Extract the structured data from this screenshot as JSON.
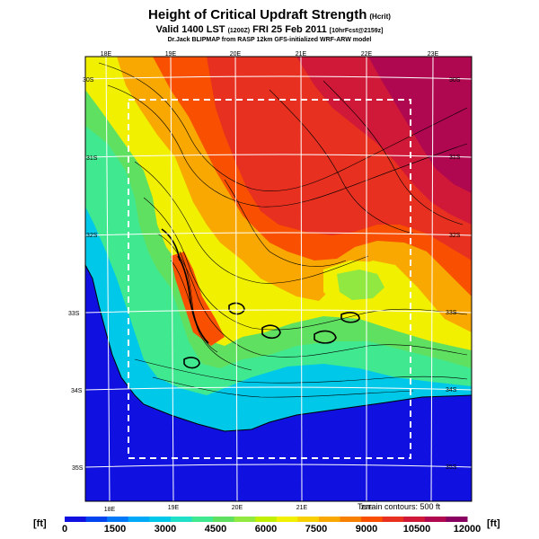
{
  "title": "Height of Critical Updraft Strength",
  "title_units": "(Hcrit)",
  "subtitle_main": "Valid 1400 LST",
  "subtitle_utc": "(1200Z)",
  "subtitle_date": "FRI 25 Feb 2011",
  "subtitle_fcst": "[10hrFcst@2159z]",
  "credit": "Dr.Jack BLIPMAP from RASP 12km GFS-initialized WRF-ARW model",
  "lon_labels_top": [
    "18E",
    "19E",
    "20E",
    "21E",
    "22E",
    "23E"
  ],
  "lon_labels_bottom": [
    "18E",
    "19E",
    "20E",
    "21E",
    "22E"
  ],
  "lat_labels_right": [
    "30S",
    "31S",
    "32S",
    "33S",
    "34S",
    "35S"
  ],
  "lat_labels_left": [
    "30S",
    "31S",
    "32S",
    "33S",
    "34S",
    "35S"
  ],
  "terrain_note": "Terrain contours: 500 ft",
  "colorbar": {
    "unit_left": "[ft]",
    "unit_right": "[ft]",
    "tick_labels": [
      "0",
      "1500",
      "3000",
      "4500",
      "6000",
      "7500",
      "9000",
      "10500",
      "12000"
    ],
    "colors": [
      "#1010e0",
      "#0044f0",
      "#0078f8",
      "#00a8f8",
      "#00c8e8",
      "#20e0c8",
      "#40e890",
      "#60e060",
      "#90e840",
      "#c0f000",
      "#f0f000",
      "#f8d000",
      "#f8a800",
      "#f88000",
      "#f85000",
      "#e83020",
      "#d01838",
      "#b00850",
      "#880060"
    ]
  }
}
